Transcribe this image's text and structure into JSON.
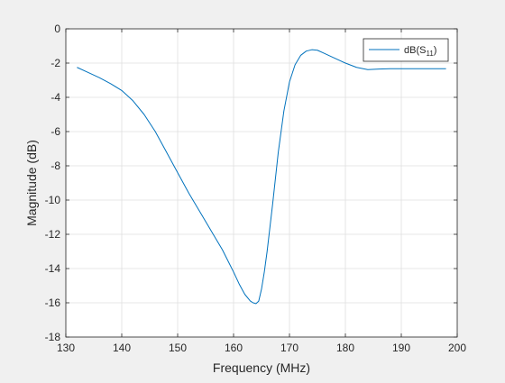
{
  "chart_data": {
    "type": "line",
    "title": "",
    "xlabel": "Frequency (MHz)",
    "ylabel": "Magnitude (dB)",
    "xlim": [
      130,
      200
    ],
    "ylim": [
      -18,
      0
    ],
    "xticks": [
      130,
      140,
      150,
      160,
      170,
      180,
      190,
      200
    ],
    "yticks": [
      0,
      -2,
      -4,
      -6,
      -8,
      -10,
      -12,
      -14,
      -16,
      -18
    ],
    "grid": true,
    "legend_position": "top-right",
    "series": [
      {
        "name_base": "dB(S",
        "name_sub": "11",
        "name_tail": ")",
        "color": "#0072BD",
        "x": [
          132,
          134,
          136,
          138,
          140,
          142,
          144,
          146,
          148,
          150,
          152,
          154,
          156,
          158,
          160,
          161,
          162,
          163,
          163.5,
          164,
          164.5,
          165,
          165.5,
          166,
          167,
          168,
          169,
          170,
          171,
          172,
          173,
          174,
          175,
          176,
          178,
          180,
          182,
          184,
          186,
          188,
          190,
          192,
          194,
          196,
          198
        ],
        "y": [
          -2.25,
          -2.55,
          -2.85,
          -3.2,
          -3.6,
          -4.2,
          -5.0,
          -6.0,
          -7.2,
          -8.4,
          -9.6,
          -10.7,
          -11.8,
          -12.9,
          -14.2,
          -14.9,
          -15.5,
          -15.9,
          -16.0,
          -16.05,
          -15.9,
          -15.2,
          -14.2,
          -13.0,
          -10.2,
          -7.2,
          -4.8,
          -3.1,
          -2.1,
          -1.55,
          -1.3,
          -1.22,
          -1.25,
          -1.4,
          -1.7,
          -2.0,
          -2.25,
          -2.38,
          -2.35,
          -2.33,
          -2.33,
          -2.33,
          -2.33,
          -2.33,
          -2.33
        ]
      }
    ]
  }
}
